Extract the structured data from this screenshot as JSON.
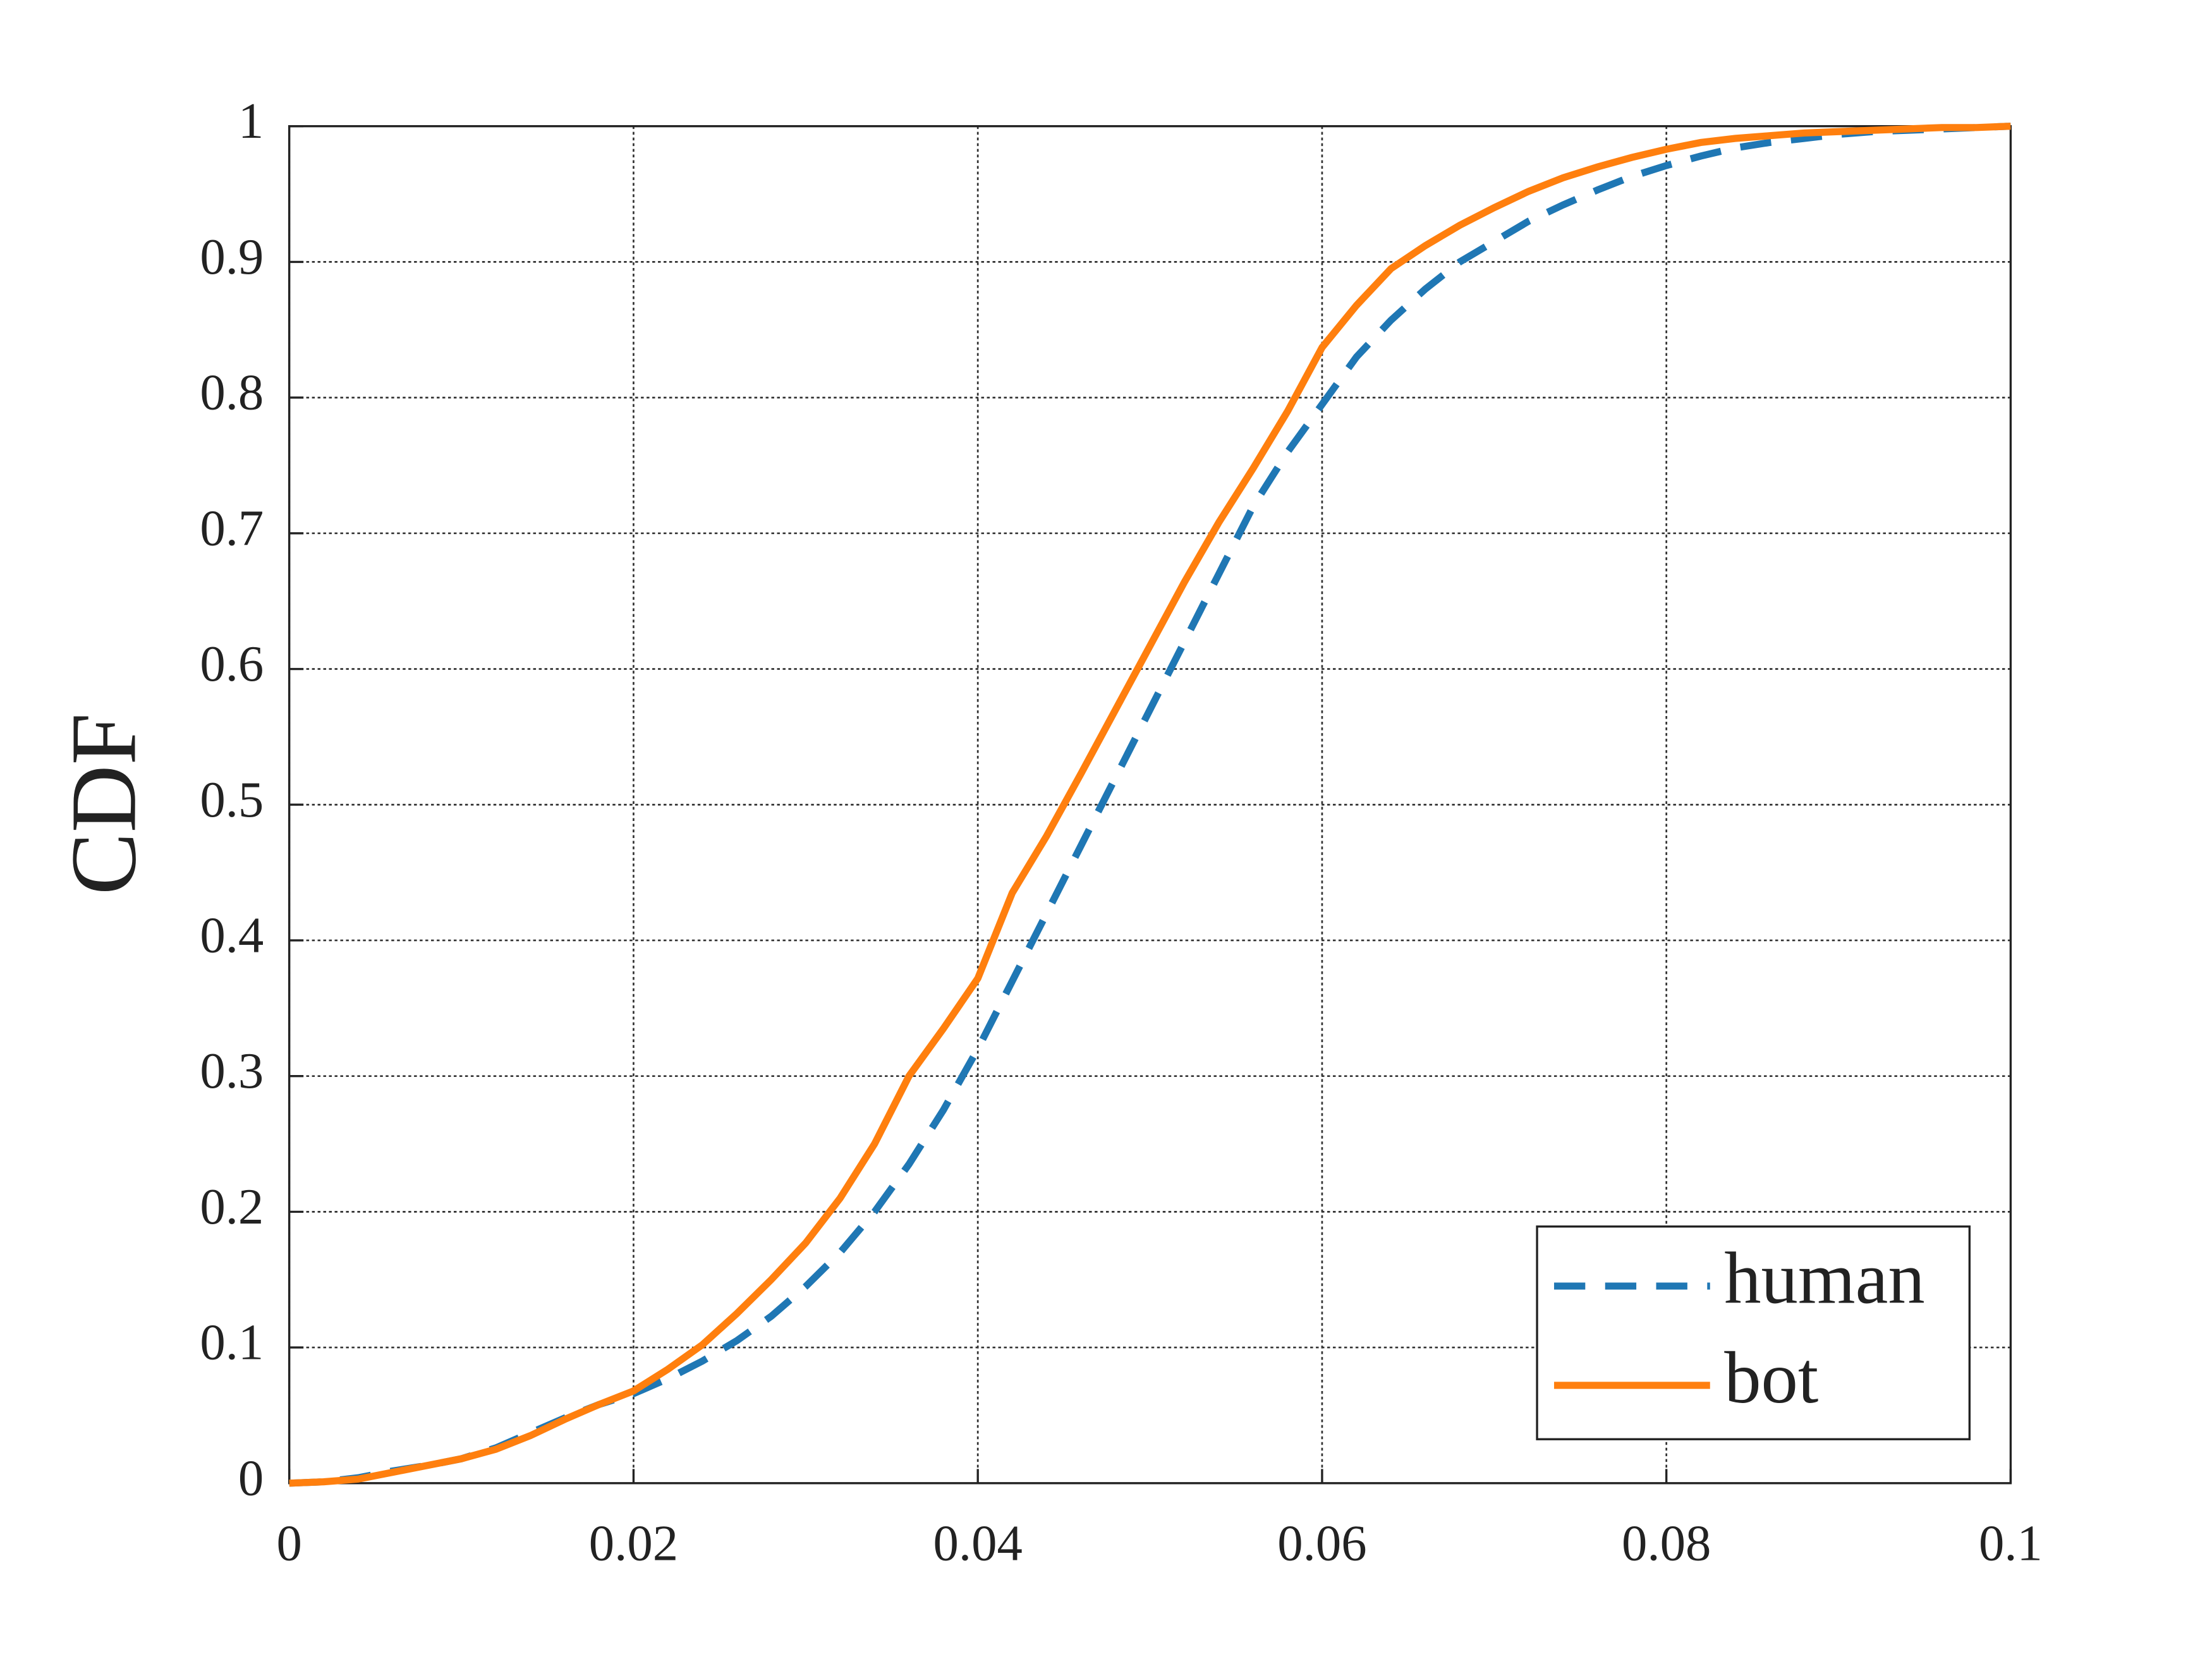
{
  "chart_data": {
    "type": "line",
    "ylabel": "CDF",
    "x": [
      0,
      0.002,
      0.004,
      0.006,
      0.008,
      0.01,
      0.012,
      0.014,
      0.016,
      0.018,
      0.02,
      0.022,
      0.024,
      0.026,
      0.028,
      0.03,
      0.032,
      0.034,
      0.036,
      0.038,
      0.04,
      0.042,
      0.044,
      0.046,
      0.048,
      0.05,
      0.052,
      0.054,
      0.056,
      0.058,
      0.06,
      0.062,
      0.064,
      0.066,
      0.068,
      0.07,
      0.072,
      0.074,
      0.076,
      0.078,
      0.08,
      0.082,
      0.084,
      0.086,
      0.088,
      0.09,
      0.092,
      0.094,
      0.096,
      0.098,
      0.1
    ],
    "series": [
      {
        "name": "human",
        "color": "#1f77b4",
        "linestyle": "dashed",
        "values": [
          0,
          0.001,
          0.004,
          0.009,
          0.013,
          0.018,
          0.026,
          0.037,
          0.048,
          0.058,
          0.066,
          0.077,
          0.09,
          0.105,
          0.123,
          0.145,
          0.17,
          0.2,
          0.235,
          0.275,
          0.32,
          0.37,
          0.42,
          0.47,
          0.52,
          0.57,
          0.62,
          0.67,
          0.72,
          0.76,
          0.795,
          0.83,
          0.857,
          0.88,
          0.9,
          0.915,
          0.93,
          0.942,
          0.953,
          0.963,
          0.971,
          0.978,
          0.984,
          0.988,
          0.991,
          0.994,
          0.996,
          0.997,
          0.998,
          0.999,
          1
        ]
      },
      {
        "name": "bot",
        "color": "#ff7f0e",
        "linestyle": "solid",
        "values": [
          0,
          0.001,
          0.003,
          0.008,
          0.013,
          0.018,
          0.025,
          0.035,
          0.047,
          0.058,
          0.068,
          0.084,
          0.102,
          0.125,
          0.15,
          0.177,
          0.21,
          0.25,
          0.3,
          0.335,
          0.372,
          0.435,
          0.477,
          0.523,
          0.57,
          0.617,
          0.664,
          0.708,
          0.748,
          0.79,
          0.837,
          0.868,
          0.895,
          0.912,
          0.927,
          0.94,
          0.952,
          0.962,
          0.97,
          0.977,
          0.983,
          0.988,
          0.991,
          0.993,
          0.995,
          0.996,
          0.997,
          0.998,
          0.999,
          0.999,
          1
        ]
      }
    ],
    "xlim": [
      0,
      0.1
    ],
    "xticks": [
      0,
      0.02,
      0.04,
      0.06,
      0.08,
      0.1
    ],
    "ylim": [
      0,
      1
    ],
    "yticks": [
      0,
      0.1,
      0.2,
      0.3,
      0.4,
      0.5,
      0.6,
      0.7,
      0.8,
      0.9,
      1
    ],
    "grid": true,
    "legend": "lower right"
  }
}
